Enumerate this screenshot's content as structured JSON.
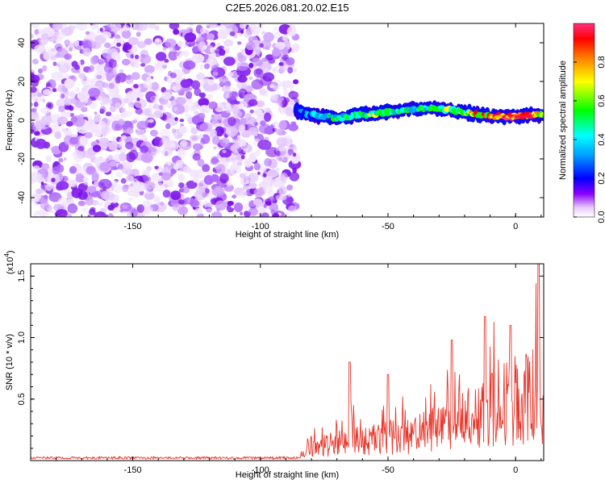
{
  "title": "C2E5.2026.081.20.02.E15",
  "chart_data": [
    {
      "type": "heatmap",
      "name": "spectrogram",
      "xlabel": "Height of straight line (km)",
      "ylabel": "Frequency (Hz)",
      "xlim": [
        -190,
        11
      ],
      "ylim": [
        -50,
        50
      ],
      "xticks": [
        -150,
        -100,
        -50,
        0
      ],
      "yticks": [
        -40,
        -20,
        0,
        20,
        40
      ],
      "noise_region": [
        -190,
        -86
      ],
      "signal_band": [
        {
          "x": -86,
          "f": 5,
          "amp": 0.15
        },
        {
          "x": -80,
          "f": 3,
          "amp": 0.3
        },
        {
          "x": -70,
          "f": 1,
          "amp": 0.35
        },
        {
          "x": -60,
          "f": 3,
          "amp": 0.5
        },
        {
          "x": -50,
          "f": 4,
          "amp": 0.4
        },
        {
          "x": -40,
          "f": 6,
          "amp": 0.35
        },
        {
          "x": -30,
          "f": 6,
          "amp": 0.45
        },
        {
          "x": -20,
          "f": 4,
          "amp": 0.6
        },
        {
          "x": -10,
          "f": 2,
          "amp": 0.8
        },
        {
          "x": 0,
          "f": 2,
          "amp": 0.9
        },
        {
          "x": 8,
          "f": 3,
          "amp": 0.7
        }
      ],
      "colorbar": {
        "label": "Normalized spectral amplitude",
        "range": [
          0,
          1
        ],
        "ticks": [
          "0.0",
          "0.2",
          "0.4",
          "0.6",
          "0.8"
        ]
      }
    },
    {
      "type": "line",
      "name": "snr",
      "xlabel": "Height of straight line (km)",
      "ylabel": "SNR (10 * v/v)",
      "multiplier_label": "(x10",
      "multiplier_exp": "4",
      "multiplier_close": ")",
      "xlim": [
        -190,
        11
      ],
      "ylim": [
        0,
        1.6
      ],
      "xticks": [
        -150,
        -100,
        -50,
        0
      ],
      "yticks": [
        "0.5",
        "1.0",
        "1.5"
      ],
      "series": [
        {
          "name": "SNR",
          "color": "#e8362b",
          "envelope_x": [
            -190,
            -120,
            -90,
            -85,
            -83,
            -80,
            -75,
            -70,
            -65,
            -60,
            -55,
            -50,
            -45,
            -40,
            -35,
            -30,
            -25,
            -20,
            -15,
            -10,
            -5,
            0,
            5,
            8,
            9,
            10,
            11
          ],
          "envelope_y": [
            0.02,
            0.02,
            0.02,
            0.03,
            0.08,
            0.15,
            0.2,
            0.22,
            0.28,
            0.25,
            0.28,
            0.3,
            0.33,
            0.32,
            0.38,
            0.42,
            0.47,
            0.52,
            0.58,
            0.65,
            0.72,
            0.78,
            0.82,
            0.85,
            1.2,
            0.5,
            0.55
          ],
          "peaks": [
            {
              "x": -65,
              "y": 0.8
            },
            {
              "x": -50,
              "y": 0.7
            },
            {
              "x": -25,
              "y": 0.98
            },
            {
              "x": -12,
              "y": 1.17
            },
            {
              "x": -2,
              "y": 1.1
            },
            {
              "x": 9,
              "y": 1.6
            }
          ]
        }
      ]
    }
  ]
}
